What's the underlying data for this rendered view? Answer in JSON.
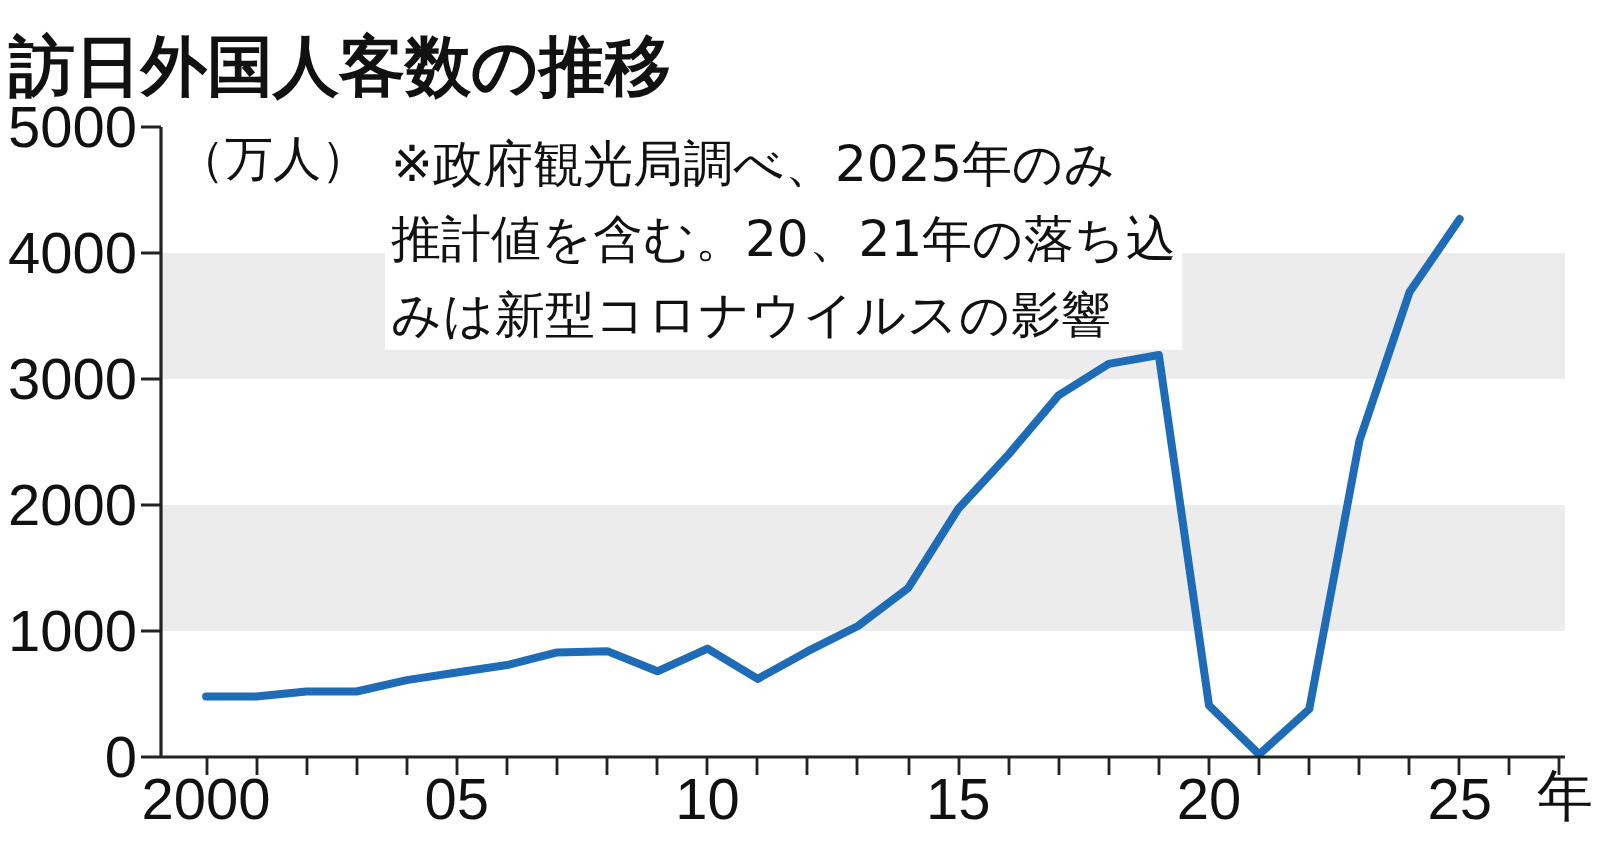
{
  "chart_data": {
    "type": "line",
    "title": "訪日外国人客数の推移",
    "ylabel": "（万人）",
    "xlabel": "年",
    "annotations": [
      "※政府観光局調べ、2025年のみ推計値を含む。20、21年の落ち込みは新型コロナウイルスの影響"
    ],
    "x": [
      2000,
      2001,
      2002,
      2003,
      2004,
      2005,
      2006,
      2007,
      2008,
      2009,
      2010,
      2011,
      2012,
      2013,
      2014,
      2015,
      2016,
      2017,
      2018,
      2019,
      2020,
      2021,
      2022,
      2023,
      2024,
      2025
    ],
    "series": [
      {
        "color": "#1e6bb8",
        "values": [
          480,
          480,
          520,
          520,
          610,
          670,
          730,
          830,
          840,
          680,
          860,
          620,
          840,
          1040,
          1340,
          1970,
          2400,
          2870,
          3120,
          3190,
          410,
          20,
          380,
          2510,
          3690,
          4270
        ]
      }
    ],
    "xlim": [
      1999.1,
      2027.1
    ],
    "ylim": [
      0,
      5000
    ],
    "xticks": [
      2000,
      {
        "value": 2001,
        "label": null
      },
      {
        "value": 2002,
        "label": null
      },
      {
        "value": 2003,
        "label": null
      },
      {
        "value": 2004,
        "label": null
      },
      {
        "value": 2005,
        "label": "05"
      },
      {
        "value": 2006,
        "label": null
      },
      {
        "value": 2007,
        "label": null
      },
      {
        "value": 2008,
        "label": null
      },
      {
        "value": 2009,
        "label": null
      },
      {
        "value": 2010,
        "label": "10"
      },
      {
        "value": 2011,
        "label": null
      },
      {
        "value": 2012,
        "label": null
      },
      {
        "value": 2013,
        "label": null
      },
      {
        "value": 2014,
        "label": null
      },
      {
        "value": 2015,
        "label": "15"
      },
      {
        "value": 2016,
        "label": null
      },
      {
        "value": 2017,
        "label": null
      },
      {
        "value": 2018,
        "label": null
      },
      {
        "value": 2019,
        "label": null
      },
      {
        "value": 2020,
        "label": "20"
      },
      {
        "value": 2021,
        "label": null
      },
      {
        "value": 2022,
        "label": null
      },
      {
        "value": 2023,
        "label": null
      },
      {
        "value": 2024,
        "label": null
      },
      {
        "value": 2025,
        "label": "25"
      },
      {
        "value": 2026,
        "label": null
      },
      {
        "value": 2027,
        "label": null
      }
    ],
    "yticks": [
      0,
      1000,
      2000,
      3000,
      4000,
      5000
    ],
    "bands": [
      {
        "axis": "y",
        "from": 1000,
        "to": 2000,
        "color": "#ececec"
      },
      {
        "axis": "y",
        "from": 3000,
        "to": 4000,
        "color": "#ececec"
      }
    ],
    "grid": false,
    "marker": "none",
    "line_style": "solid"
  }
}
